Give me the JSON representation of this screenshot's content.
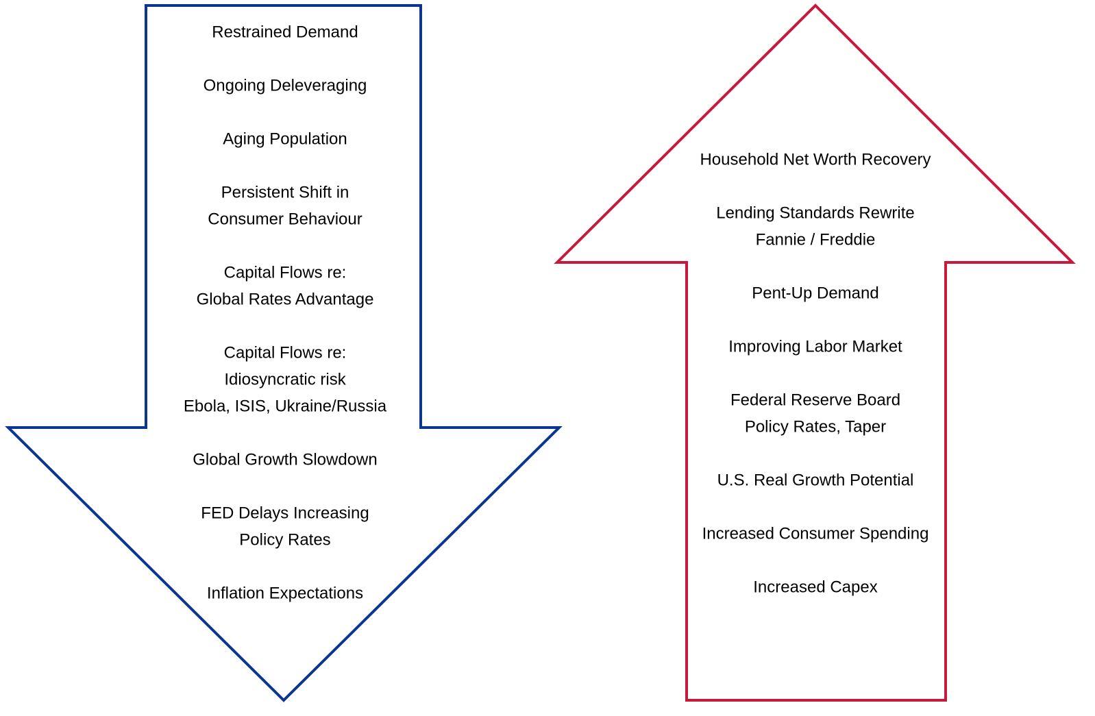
{
  "down_arrow": {
    "items": [
      [
        "Restrained Demand"
      ],
      [
        "Ongoing Deleveraging"
      ],
      [
        "Aging Population"
      ],
      [
        "Persistent Shift in",
        "Consumer Behaviour"
      ],
      [
        "Capital Flows re:",
        "Global Rates Advantage"
      ],
      [
        "Capital Flows re:",
        "Idiosyncratic risk",
        "Ebola, ISIS, Ukraine/Russia"
      ],
      [
        "Global Growth Slowdown"
      ],
      [
        "FED Delays Increasing",
        "Policy Rates"
      ],
      [
        "Inflation Expectations"
      ]
    ]
  },
  "up_arrow": {
    "items": [
      [
        "Household Net Worth Recovery"
      ],
      [
        "Lending Standards Rewrite",
        "Fannie / Freddie"
      ],
      [
        "Pent-Up Demand"
      ],
      [
        "Improving Labor Market"
      ],
      [
        "Federal Reserve Board",
        "Policy Rates, Taper"
      ],
      [
        "U.S. Real Growth Potential"
      ],
      [
        "Increased Consumer Spending"
      ],
      [
        "Increased Capex"
      ]
    ]
  }
}
